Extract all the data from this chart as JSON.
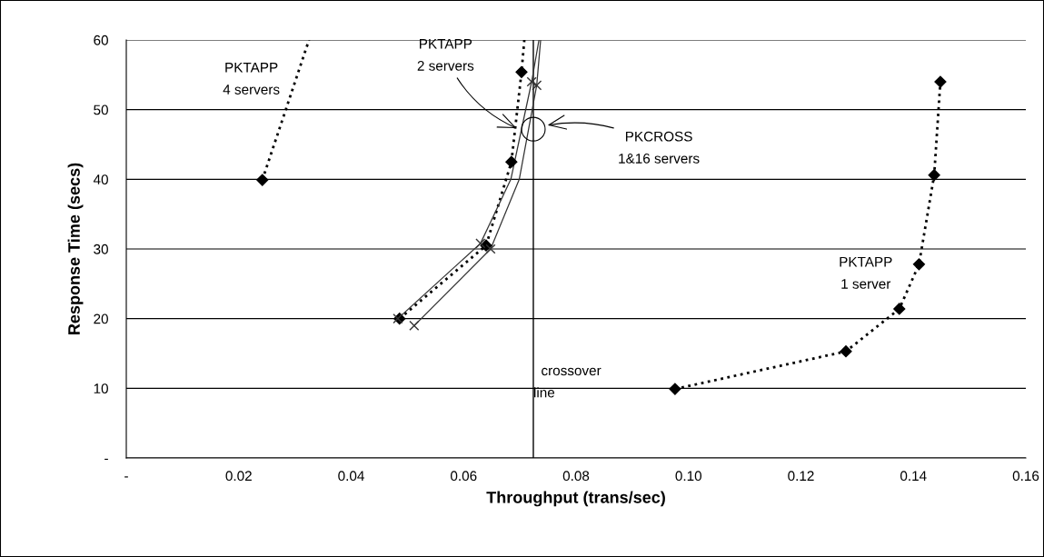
{
  "chart_data": {
    "type": "line",
    "xlabel": "Throughput (trans/sec)",
    "ylabel": "Response Time (secs)",
    "xlim": [
      0,
      0.16
    ],
    "xticks": [
      {
        "value": 0,
        "label": "-"
      },
      0.02,
      0.04,
      0.06,
      0.08,
      {
        "value": 0.1,
        "label": "0.10"
      },
      0.12,
      0.14,
      0.16
    ],
    "ylim": [
      0,
      60
    ],
    "yticks": [
      {
        "value": 0,
        "label": "-"
      },
      10,
      20,
      30,
      40,
      50,
      60
    ],
    "grid": "y",
    "series": [
      {
        "color": "#000000",
        "marker": "none",
        "line_style": "dotted",
        "x": [
          0.0242,
          0.0325
        ],
        "values": [
          39.9,
          60
        ]
      },
      {
        "color": "#000000",
        "marker": "none",
        "line_style": "dotted",
        "x": [
          0.0486,
          0.064,
          0.0685,
          0.0703,
          0.0708
        ],
        "values": [
          20,
          30.5,
          42.5,
          55.4,
          60
        ]
      },
      {
        "color": "#333333",
        "marker": "none",
        "line_style": "solid",
        "x": [
          0.0483,
          0.063,
          0.0684,
          0.0721,
          0.0734
        ],
        "values": [
          20,
          30.8,
          40,
          54,
          60
        ]
      },
      {
        "color": "#333333",
        "marker": "none",
        "line_style": "solid",
        "x": [
          0.0512,
          0.0648,
          0.0699,
          0.073,
          0.0737
        ],
        "values": [
          19,
          30,
          40,
          53.5,
          60
        ]
      },
      {
        "color": "#000000",
        "marker": "diamond",
        "line_style": "dotted",
        "x": [
          0.0976,
          0.128,
          0.1375,
          0.141,
          0.1437,
          0.1448
        ],
        "values": [
          9.9,
          15.3,
          21.4,
          27.8,
          40.6,
          54
        ]
      },
      {
        "type": "scatter",
        "color": "#000000",
        "marker": "diamond",
        "x": [
          0.0242,
          0.0486,
          0.064,
          0.0685,
          0.0703
        ],
        "values": [
          39.9,
          20,
          30.5,
          42.5,
          55.4
        ]
      },
      {
        "type": "scatter",
        "color": "#333333",
        "marker": "cross",
        "x": [
          0.0483,
          0.063,
          0.0721,
          0.0512,
          0.0648,
          0.073
        ],
        "values": [
          20,
          30.8,
          54,
          19,
          30,
          53.5
        ]
      }
    ],
    "ref_lines": [
      {
        "axis": "x",
        "value": 0.0724,
        "label": "crossover\nline",
        "color": "#000000"
      }
    ],
    "annotations": [
      "PKTAPP\n4 servers",
      {
        "text": "PKTAPP\n2 servers",
        "x": 0.0698,
        "y": 47.2
      },
      "PKCROSS\n1&16 servers",
      "PKTAPP\n1 server"
    ]
  }
}
